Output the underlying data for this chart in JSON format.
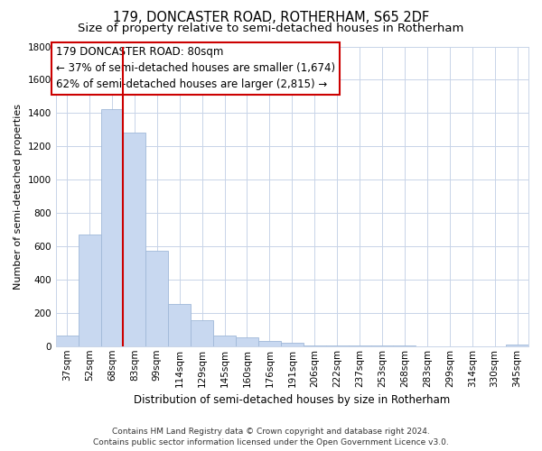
{
  "title": "179, DONCASTER ROAD, ROTHERHAM, S65 2DF",
  "subtitle": "Size of property relative to semi-detached houses in Rotherham",
  "xlabel": "Distribution of semi-detached houses by size in Rotherham",
  "ylabel": "Number of semi-detached properties",
  "categories": [
    "37sqm",
    "52sqm",
    "68sqm",
    "83sqm",
    "99sqm",
    "114sqm",
    "129sqm",
    "145sqm",
    "160sqm",
    "176sqm",
    "191sqm",
    "206sqm",
    "222sqm",
    "237sqm",
    "253sqm",
    "268sqm",
    "283sqm",
    "299sqm",
    "314sqm",
    "330sqm",
    "345sqm"
  ],
  "values": [
    65,
    670,
    1425,
    1280,
    575,
    255,
    155,
    65,
    55,
    30,
    20,
    5,
    5,
    3,
    2,
    2,
    1,
    1,
    0,
    0,
    10
  ],
  "bar_color": "#c8d8f0",
  "bar_edge_color": "#a0b8d8",
  "property_line_color": "#cc0000",
  "property_line_x": 2.5,
  "annotation_text_line1": "179 DONCASTER ROAD: 80sqm",
  "annotation_text_line2": "← 37% of semi-detached houses are smaller (1,674)",
  "annotation_text_line3": "62% of semi-detached houses are larger (2,815) →",
  "ylim": [
    0,
    1800
  ],
  "footer_line1": "Contains HM Land Registry data © Crown copyright and database right 2024.",
  "footer_line2": "Contains public sector information licensed under the Open Government Licence v3.0.",
  "bg_color": "#ffffff",
  "grid_color": "#c8d4e8",
  "title_fontsize": 10.5,
  "subtitle_fontsize": 9.5,
  "xlabel_fontsize": 8.5,
  "ylabel_fontsize": 8,
  "tick_fontsize": 7.5,
  "footer_fontsize": 6.5,
  "annotation_fontsize": 8.5
}
